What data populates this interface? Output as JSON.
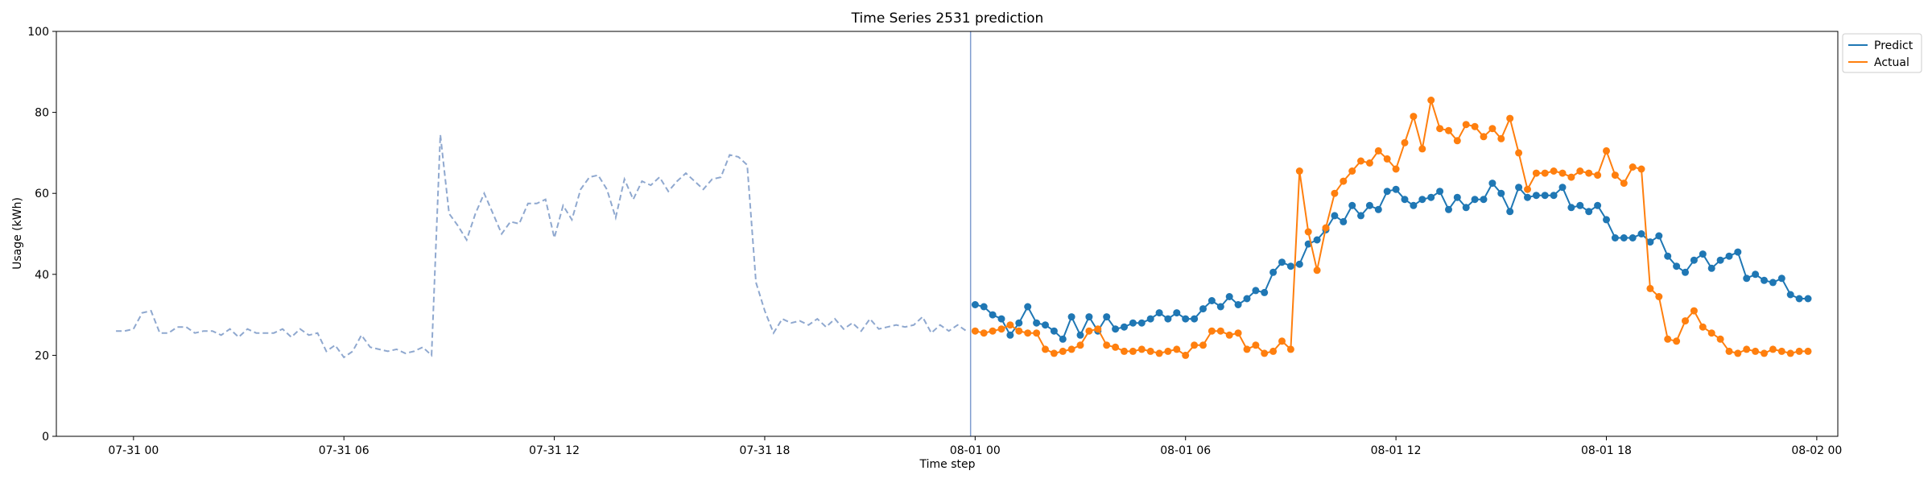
{
  "chart_data": {
    "type": "line",
    "title": "Time Series 2531 prediction",
    "xlabel": "Time step",
    "ylabel": "Usage (kWh)",
    "ylim": [
      0,
      100
    ],
    "xlim_hours": [
      -2.5,
      40.5
    ],
    "yticks": [
      0,
      20,
      40,
      60,
      80,
      100
    ],
    "xticks": [
      {
        "h": 0,
        "label": "07-31 00"
      },
      {
        "h": 6,
        "label": "07-31 06"
      },
      {
        "h": 12,
        "label": "07-31 12"
      },
      {
        "h": 18,
        "label": "07-31 18"
      },
      {
        "h": 24,
        "label": "08-01 00"
      },
      {
        "h": 30,
        "label": "08-01 06"
      },
      {
        "h": 36,
        "label": "08-01 12"
      },
      {
        "h": 42,
        "label": "08-01 18"
      },
      {
        "h": 48,
        "label": "08-02 00"
      }
    ],
    "step_hours": 0.25,
    "history": {
      "start_hour": -0.5,
      "color": "#8fa8cf",
      "values": [
        26,
        26,
        26.5,
        30.5,
        31,
        25.5,
        25.5,
        27,
        27,
        25.5,
        26,
        26,
        25,
        26.5,
        24.5,
        26.5,
        25.5,
        25.5,
        25.5,
        26.5,
        24.5,
        26.5,
        25,
        25.5,
        21,
        22.5,
        19.5,
        21,
        25,
        22,
        21.5,
        21,
        21.5,
        20.5,
        21,
        22,
        20,
        74.5,
        55,
        52,
        48.5,
        55,
        60,
        55,
        50,
        53,
        52.5,
        57.5,
        57.5,
        58.5,
        49,
        57,
        53.5,
        61,
        64,
        64.5,
        61,
        54,
        63.5,
        58.5,
        63,
        62,
        64,
        60.5,
        63,
        65,
        63,
        61,
        63.5,
        64,
        69.5,
        69,
        67,
        38,
        31,
        25.5,
        29,
        28,
        28.5,
        27.5,
        29,
        27,
        29,
        26.5,
        28,
        26,
        29,
        26.5,
        27,
        27.5,
        27,
        27.5,
        29.5,
        25.5,
        27.5,
        26,
        27.5,
        26
      ]
    },
    "forecast_start_hour": 23.75,
    "forecast_line_color": "#7f9ccf",
    "series": [
      {
        "name": "Predict",
        "color": "#1f77b4",
        "start_hour": 24,
        "values": [
          32.5,
          32,
          30,
          29,
          25,
          28,
          32,
          28,
          27.5,
          26,
          24,
          29.5,
          25,
          29.5,
          26,
          29.5,
          26.5,
          27,
          28,
          28,
          29,
          30.5,
          29,
          30.5,
          29,
          29,
          31.5,
          33.5,
          32,
          34.5,
          32.5,
          34,
          36,
          35.5,
          40.5,
          43,
          42,
          42.5,
          47.5,
          48.5,
          51,
          54.5,
          53,
          57,
          54.5,
          57,
          56,
          60.5,
          61,
          58.5,
          57,
          58.5,
          59,
          60.5,
          56,
          59,
          56.5,
          58.5,
          58.5,
          62.5,
          60,
          55.5,
          61.5,
          59,
          59.5,
          59.5,
          59.5,
          61.5,
          56.5,
          57,
          55.5,
          57,
          53.5,
          49,
          49,
          49,
          50,
          48,
          49.5,
          44.5,
          42,
          40.5,
          43.5,
          45,
          41.5,
          43.5,
          44.5,
          45.5,
          39,
          40,
          38.5,
          38,
          39,
          35,
          34,
          34
        ]
      },
      {
        "name": "Actual",
        "color": "#ff7f0e",
        "start_hour": 24,
        "values": [
          26,
          25.5,
          26,
          26.5,
          27.5,
          26,
          25.5,
          25.5,
          21.5,
          20.5,
          21,
          21.5,
          22.5,
          26,
          26.5,
          22.5,
          22,
          21,
          21,
          21.5,
          21,
          20.5,
          21,
          21.5,
          20,
          22.5,
          22.5,
          26,
          26,
          25,
          25.5,
          21.5,
          22.5,
          20.5,
          21,
          23.5,
          21.5,
          65.5,
          50.5,
          41,
          51.5,
          60,
          63,
          65.5,
          68,
          67.5,
          70.5,
          68.5,
          66,
          72.5,
          79,
          71,
          83,
          76,
          75.5,
          73,
          77,
          76.5,
          74,
          76,
          73.5,
          78.5,
          70,
          61,
          65,
          65,
          65.5,
          65,
          64,
          65.5,
          65,
          64.5,
          70.5,
          64.5,
          62.5,
          66.5,
          66,
          36.5,
          34.5,
          24,
          23.5,
          28.5,
          31,
          27,
          25.5,
          24,
          21,
          20.5,
          21.5,
          21,
          20.5,
          21.5,
          21,
          20.5,
          21,
          21
        ]
      }
    ],
    "legend": {
      "position": "top-right-outside",
      "entries": [
        {
          "label": "Predict",
          "color": "#1f77b4"
        },
        {
          "label": "Actual",
          "color": "#ff7f0e"
        }
      ]
    },
    "grid": false
  }
}
